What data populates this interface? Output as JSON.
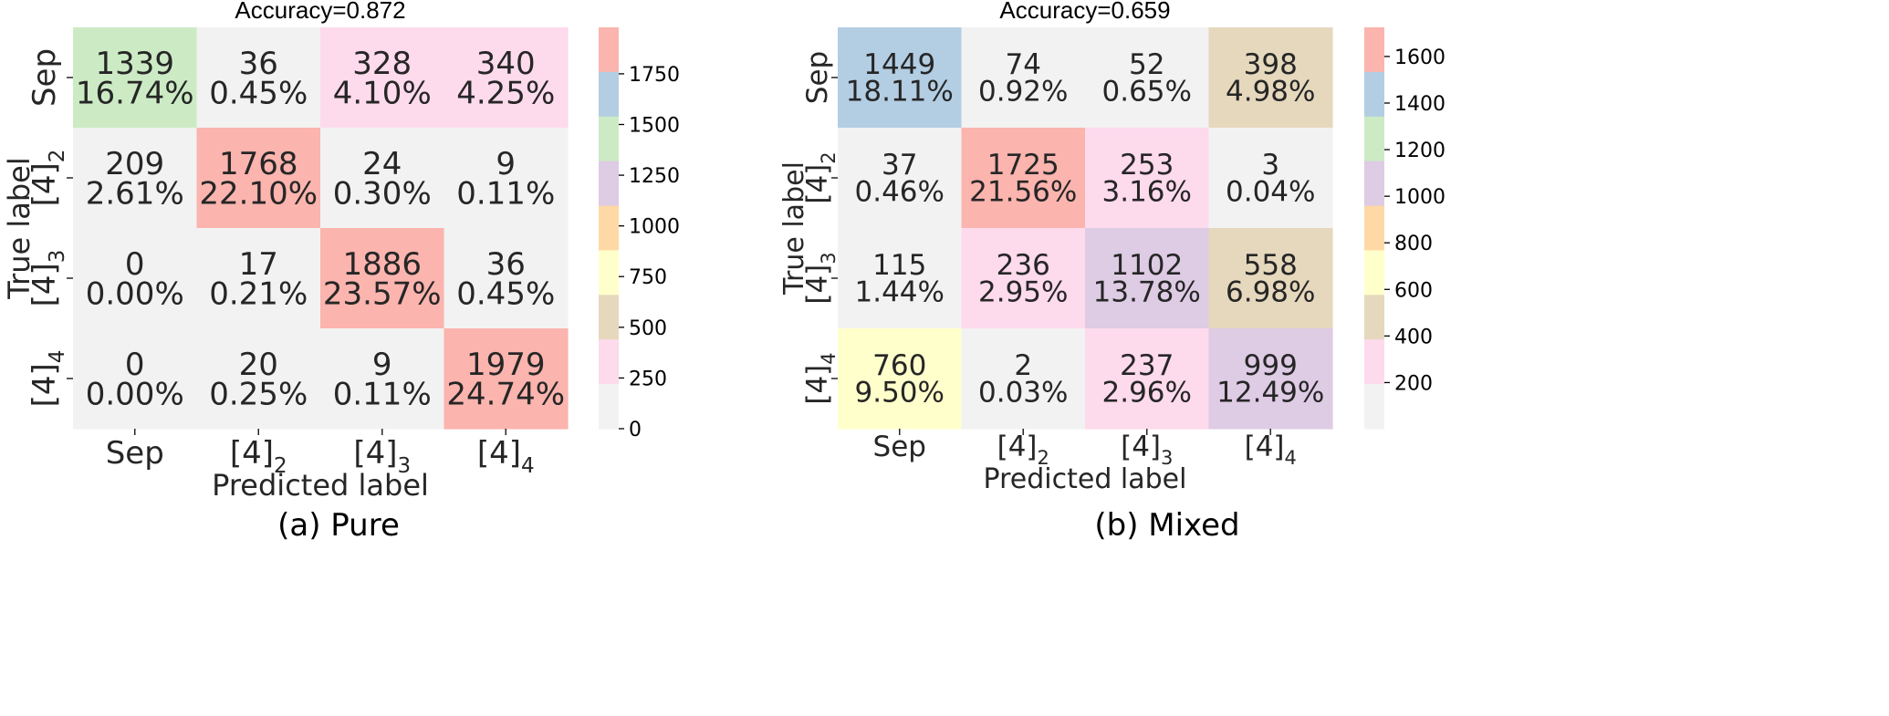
{
  "chart_data": [
    {
      "type": "heatmap",
      "title": "Accuracy=0.872",
      "caption": "(a)  Pure",
      "xlabel": "Predicted label",
      "ylabel": "True label",
      "x_categories": [
        "Sep",
        "[4]2",
        "[4]3",
        "[4]4"
      ],
      "y_categories": [
        "Sep",
        "[4]2",
        "[4]3",
        "[4]4"
      ],
      "values": [
        [
          1339,
          36,
          328,
          340
        ],
        [
          209,
          1768,
          24,
          9
        ],
        [
          0,
          17,
          1886,
          36
        ],
        [
          0,
          20,
          9,
          1979
        ]
      ],
      "percentages": [
        [
          "16.74%",
          "0.45%",
          "4.10%",
          "4.25%"
        ],
        [
          "2.61%",
          "22.10%",
          "0.30%",
          "0.11%"
        ],
        [
          "0.00%",
          "0.21%",
          "23.57%",
          "0.45%"
        ],
        [
          "0.00%",
          "0.25%",
          "0.11%",
          "24.74%"
        ]
      ],
      "colorbar": {
        "colormap": "Pastel1",
        "vmin": 0,
        "vmax": 1979,
        "ticks": [
          "0",
          "250",
          "500",
          "750",
          "1000",
          "1250",
          "1500",
          "1750"
        ]
      }
    },
    {
      "type": "heatmap",
      "title": "Accuracy=0.659",
      "caption": "(b)  Mixed",
      "xlabel": "Predicted label",
      "ylabel": "True label",
      "x_categories": [
        "Sep",
        "[4]2",
        "[4]3",
        "[4]4"
      ],
      "y_categories": [
        "Sep",
        "[4]2",
        "[4]3",
        "[4]4"
      ],
      "values": [
        [
          1449,
          74,
          52,
          398
        ],
        [
          37,
          1725,
          253,
          3
        ],
        [
          115,
          236,
          1102,
          558
        ],
        [
          760,
          2,
          237,
          999
        ]
      ],
      "percentages": [
        [
          "18.11%",
          "0.92%",
          "0.65%",
          "4.98%"
        ],
        [
          "0.46%",
          "21.56%",
          "3.16%",
          "0.04%"
        ],
        [
          "1.44%",
          "2.95%",
          "13.78%",
          "6.98%"
        ],
        [
          "9.50%",
          "0.03%",
          "2.96%",
          "12.49%"
        ]
      ],
      "colorbar": {
        "colormap": "Pastel1",
        "vmin": 2,
        "vmax": 1725,
        "ticks": [
          "200",
          "400",
          "600",
          "800",
          "1000",
          "1200",
          "1400",
          "1600"
        ]
      }
    }
  ],
  "palette": [
    "#fbb4ae",
    "#b3cde3",
    "#ccebc5",
    "#decbe4",
    "#fed9a6",
    "#ffffcc",
    "#e5d8bd",
    "#fddaec",
    "#f2f2f2"
  ]
}
